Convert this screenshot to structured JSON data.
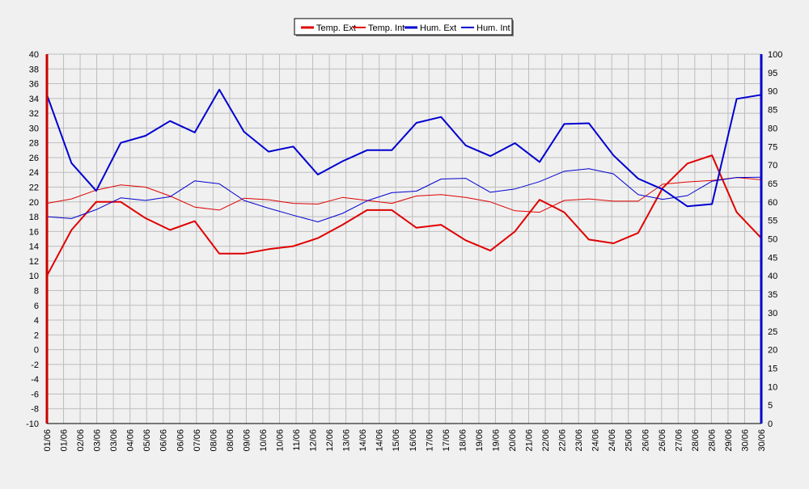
{
  "chart_data": {
    "type": "line",
    "title": "",
    "xlabel": "",
    "ylabel": "",
    "legend_position": "top-center",
    "grid": true,
    "categories": [
      "01/06",
      "01/06",
      "02/06",
      "03/06",
      "03/06",
      "04/06",
      "05/06",
      "06/06",
      "06/06",
      "07/06",
      "08/06",
      "08/06",
      "09/06",
      "10/06",
      "10/06",
      "11/06",
      "12/06",
      "12/06",
      "13/06",
      "14/06",
      "14/06",
      "15/06",
      "16/06",
      "17/06",
      "17/06",
      "18/06",
      "19/06",
      "19/06",
      "20/06",
      "21/06",
      "22/06",
      "22/06",
      "23/06",
      "24/06",
      "24/06",
      "25/06",
      "26/06",
      "26/06",
      "27/06",
      "28/06",
      "28/06",
      "29/06",
      "30/06",
      "30/06"
    ],
    "y_left": {
      "min": -10,
      "max": 40,
      "step": 2
    },
    "y_right": {
      "min": 0,
      "max": 100,
      "step": 5
    },
    "series": [
      {
        "name": "Temp. Ext",
        "axis": "left",
        "color": "#e00000",
        "width": 2,
        "points": [
          [
            0,
            10
          ],
          [
            1,
            16.2
          ],
          [
            2,
            20
          ],
          [
            3,
            20
          ],
          [
            4,
            17.8
          ],
          [
            5,
            16.2
          ],
          [
            6,
            17.4
          ],
          [
            7,
            13
          ],
          [
            8,
            13
          ],
          [
            9,
            13.6
          ],
          [
            10,
            14
          ],
          [
            11,
            15.1
          ],
          [
            12,
            16.9
          ],
          [
            13,
            18.9
          ],
          [
            14,
            18.9
          ],
          [
            15,
            16.5
          ],
          [
            16,
            16.9
          ],
          [
            17,
            14.8
          ],
          [
            18,
            13.4
          ],
          [
            19,
            16
          ],
          [
            20,
            20.3
          ],
          [
            21,
            18.6
          ],
          [
            22,
            14.9
          ],
          [
            23,
            14.4
          ],
          [
            24,
            15.8
          ],
          [
            25,
            21.9
          ],
          [
            26,
            25.2
          ],
          [
            27,
            26.3
          ],
          [
            28,
            18.6
          ],
          [
            29,
            15.1
          ]
        ]
      },
      {
        "name": "Temp. Int",
        "axis": "left",
        "color": "#e00000",
        "width": 1,
        "points": [
          [
            0,
            19.8
          ],
          [
            1,
            20.4
          ],
          [
            2,
            21.6
          ],
          [
            3,
            22.3
          ],
          [
            4,
            22
          ],
          [
            5,
            20.8
          ],
          [
            6,
            19.3
          ],
          [
            7,
            18.9
          ],
          [
            8,
            20.5
          ],
          [
            9,
            20.3
          ],
          [
            10,
            19.8
          ],
          [
            11,
            19.7
          ],
          [
            12,
            20.6
          ],
          [
            13,
            20.2
          ],
          [
            14,
            19.8
          ],
          [
            15,
            20.8
          ],
          [
            16,
            21
          ],
          [
            17,
            20.6
          ],
          [
            18,
            20
          ],
          [
            19,
            18.8
          ],
          [
            20,
            18.6
          ],
          [
            21,
            20.2
          ],
          [
            22,
            20.4
          ],
          [
            23,
            20.1
          ],
          [
            24,
            20.1
          ],
          [
            25,
            22.4
          ],
          [
            26,
            22.7
          ],
          [
            27,
            22.9
          ],
          [
            28,
            23.3
          ],
          [
            29,
            23
          ]
        ]
      },
      {
        "name": "Hum. Ext",
        "axis": "right",
        "color": "#0000d0",
        "width": 2,
        "points": [
          [
            0,
            89
          ],
          [
            1,
            70.5
          ],
          [
            2,
            63
          ],
          [
            3,
            76
          ],
          [
            4,
            77.9
          ],
          [
            5,
            81.9
          ],
          [
            6,
            78.8
          ],
          [
            7,
            90.4
          ],
          [
            8,
            79
          ],
          [
            9,
            73.6
          ],
          [
            10,
            75
          ],
          [
            11,
            67.4
          ],
          [
            12,
            71
          ],
          [
            13,
            74
          ],
          [
            14,
            74
          ],
          [
            15,
            81.4
          ],
          [
            16,
            83
          ],
          [
            17,
            75.3
          ],
          [
            18,
            72.4
          ],
          [
            19,
            75.9
          ],
          [
            20,
            70.8
          ],
          [
            21,
            81.1
          ],
          [
            22,
            81.3
          ],
          [
            23,
            72.6
          ],
          [
            24,
            66.3
          ],
          [
            25,
            63.4
          ],
          [
            26,
            58.8
          ],
          [
            27,
            59.4
          ],
          [
            28,
            87.9
          ],
          [
            29,
            89
          ]
        ]
      },
      {
        "name": "Hum. Int",
        "axis": "right",
        "color": "#0000d0",
        "width": 1,
        "points": [
          [
            0,
            56
          ],
          [
            1,
            55.5
          ],
          [
            2,
            57.9
          ],
          [
            3,
            61.1
          ],
          [
            4,
            60.4
          ],
          [
            5,
            61.4
          ],
          [
            6,
            65.7
          ],
          [
            7,
            64.9
          ],
          [
            8,
            60.4
          ],
          [
            9,
            58.3
          ],
          [
            10,
            56.4
          ],
          [
            11,
            54.6
          ],
          [
            12,
            56.9
          ],
          [
            13,
            60.3
          ],
          [
            14,
            62.5
          ],
          [
            15,
            62.9
          ],
          [
            16,
            66.2
          ],
          [
            17,
            66.4
          ],
          [
            18,
            62.6
          ],
          [
            19,
            63.5
          ],
          [
            20,
            65.5
          ],
          [
            21,
            68.3
          ],
          [
            22,
            69
          ],
          [
            23,
            67.6
          ],
          [
            24,
            62
          ],
          [
            25,
            60.7
          ],
          [
            26,
            61.7
          ],
          [
            27,
            65.6
          ],
          [
            28,
            66.6
          ],
          [
            29,
            66.7
          ]
        ]
      }
    ]
  }
}
